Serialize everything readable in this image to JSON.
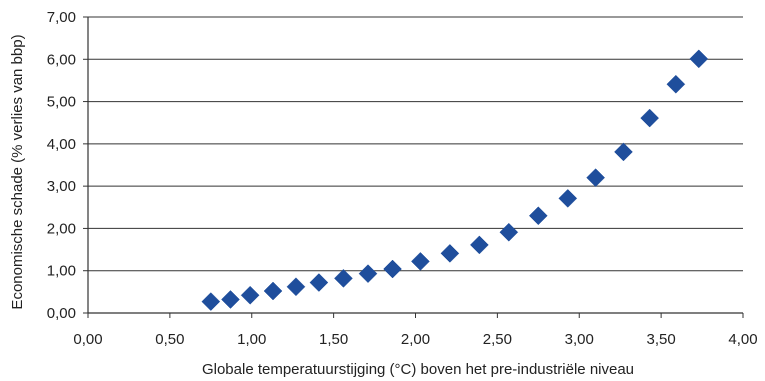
{
  "chart_data": {
    "type": "scatter",
    "title": "",
    "xlabel": "Globale temperatuurstijging (°C) boven het pre-industriële niveau",
    "ylabel": "Economische schade (% verlies van bbp)",
    "xlim": [
      0,
      4
    ],
    "ylim": [
      0,
      7
    ],
    "x_ticks": [
      "0,00",
      "0,50",
      "1,00",
      "1,50",
      "2,00",
      "2,50",
      "3,00",
      "3,50",
      "4,00"
    ],
    "y_ticks": [
      "0,00",
      "1,00",
      "2,00",
      "3,00",
      "4,00",
      "5,00",
      "6,00",
      "7,00"
    ],
    "grid": "horizontal",
    "marker": "diamond",
    "marker_color": "#1f4e9c",
    "points": [
      {
        "x": 0.75,
        "y": 0.27
      },
      {
        "x": 0.87,
        "y": 0.32
      },
      {
        "x": 0.99,
        "y": 0.42
      },
      {
        "x": 1.13,
        "y": 0.52
      },
      {
        "x": 1.27,
        "y": 0.62
      },
      {
        "x": 1.41,
        "y": 0.72
      },
      {
        "x": 1.56,
        "y": 0.82
      },
      {
        "x": 1.71,
        "y": 0.93
      },
      {
        "x": 1.86,
        "y": 1.04
      },
      {
        "x": 2.03,
        "y": 1.22
      },
      {
        "x": 2.21,
        "y": 1.41
      },
      {
        "x": 2.39,
        "y": 1.61
      },
      {
        "x": 2.57,
        "y": 1.91
      },
      {
        "x": 2.75,
        "y": 2.3
      },
      {
        "x": 2.93,
        "y": 2.71
      },
      {
        "x": 3.1,
        "y": 3.2
      },
      {
        "x": 3.27,
        "y": 3.81
      },
      {
        "x": 3.43,
        "y": 4.61
      },
      {
        "x": 3.59,
        "y": 5.41
      },
      {
        "x": 3.73,
        "y": 6.01
      }
    ]
  }
}
